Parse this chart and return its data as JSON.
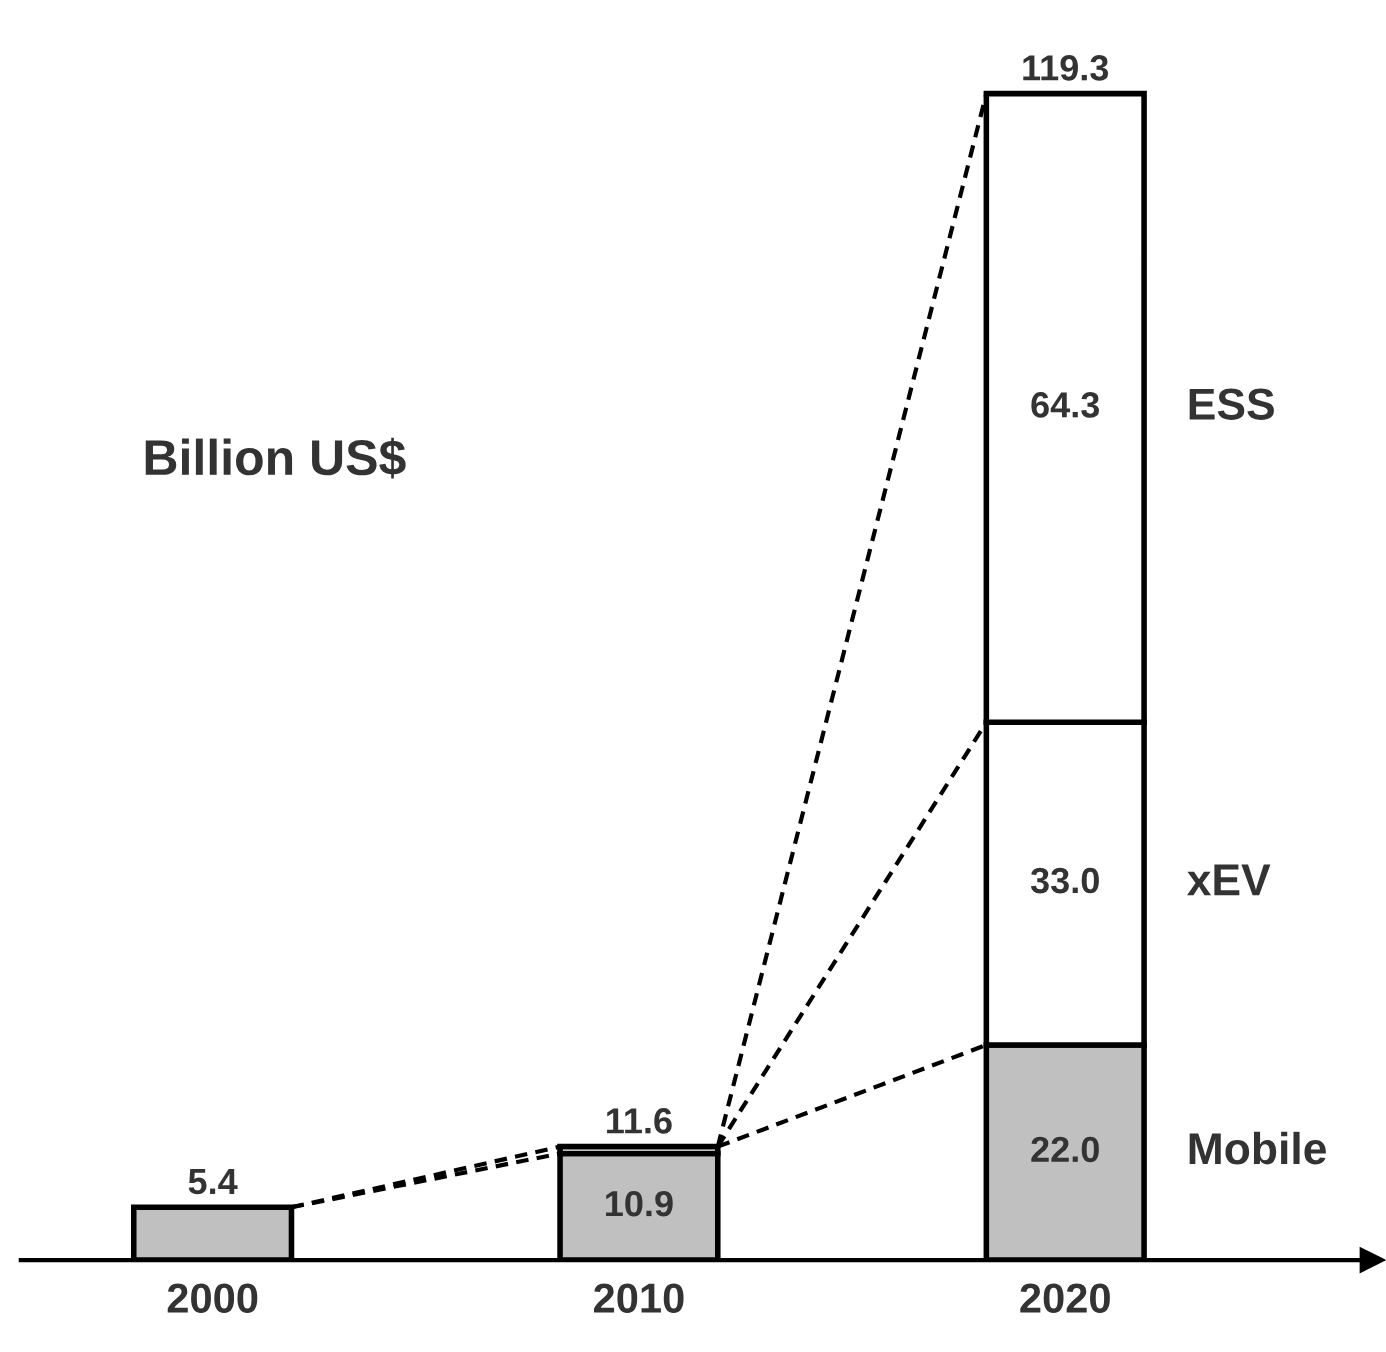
{
  "chart_data": {
    "type": "bar",
    "stacked": true,
    "categories": [
      "2000",
      "2010",
      "2020"
    ],
    "series": [
      {
        "name": "Mobile",
        "color": "#c0c0c0",
        "values": [
          5.4,
          10.9,
          22.0
        ],
        "value_labels": [
          null,
          "10.9",
          "22.0"
        ]
      },
      {
        "name": "xEV",
        "color": "#ffffff",
        "values": [
          null,
          0.7,
          33.0
        ],
        "value_labels": [
          null,
          null,
          "33.0"
        ]
      },
      {
        "name": "ESS",
        "color": "#ffffff",
        "values": [
          null,
          null,
          64.3
        ],
        "value_labels": [
          null,
          null,
          "64.3"
        ]
      }
    ],
    "totals": [
      "5.4",
      "11.6",
      "119.3"
    ],
    "annotations": [
      "Billion US$"
    ],
    "tick_labels": "x"
  }
}
